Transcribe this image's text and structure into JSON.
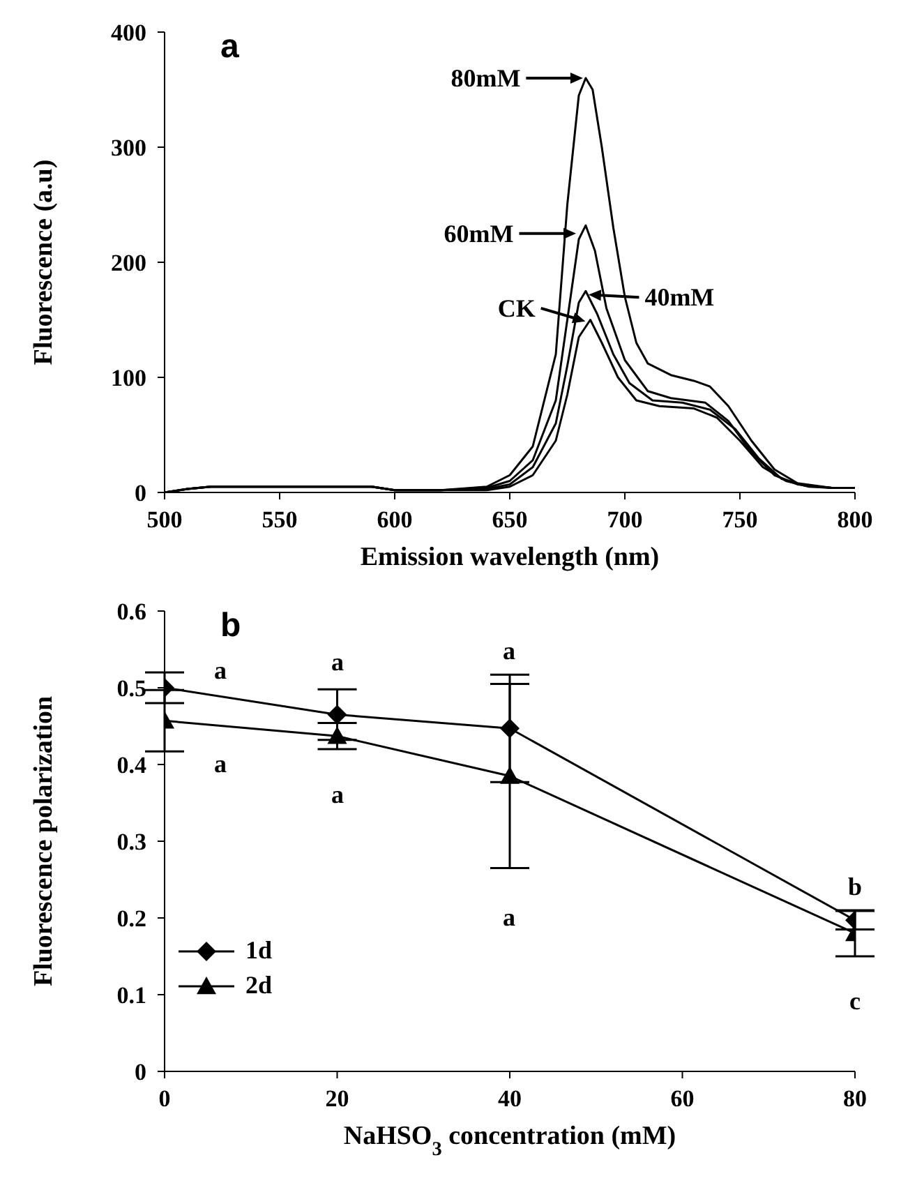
{
  "chart_data": [
    {
      "type": "line",
      "xlabel": "Emission wavelength (nm)",
      "ylabel": "Fluorescence (a.u)",
      "xlim": [
        500,
        800
      ],
      "xticks": [
        500,
        550,
        600,
        650,
        700,
        750,
        800
      ],
      "ylim": [
        0,
        400
      ],
      "yticks": [
        0,
        100,
        200,
        300,
        400
      ],
      "grid": false,
      "legend": false,
      "marker": "none",
      "line_style": "solid",
      "annotations": [
        "a",
        {
          "text": "80mM",
          "x": 683,
          "y": 360
        },
        {
          "text": "60mM",
          "x": 680,
          "y": 225
        },
        {
          "text": "40mM",
          "x": 683,
          "y": 172
        },
        {
          "text": "CK",
          "x": 684,
          "y": 148
        }
      ],
      "series": [
        {
          "color": "#000000",
          "x": [
            500,
            510,
            520,
            590,
            600,
            620,
            640,
            650,
            660,
            670,
            675,
            680,
            683,
            686,
            690,
            695,
            700,
            705,
            710,
            720,
            730,
            737,
            745,
            755,
            765,
            775,
            790,
            800
          ],
          "values": [
            0,
            3,
            5,
            5,
            2,
            2,
            5,
            15,
            40,
            120,
            250,
            345,
            360,
            350,
            300,
            230,
            170,
            130,
            112,
            102,
            97,
            92,
            75,
            45,
            20,
            8,
            4,
            4
          ]
        },
        {
          "color": "#000000",
          "x": [
            500,
            510,
            520,
            590,
            600,
            620,
            640,
            650,
            660,
            670,
            675,
            680,
            683,
            687,
            692,
            700,
            710,
            720,
            735,
            745,
            755,
            765,
            775,
            790,
            800
          ],
          "values": [
            0,
            3,
            5,
            5,
            2,
            2,
            4,
            10,
            28,
            80,
            150,
            220,
            232,
            210,
            160,
            115,
            88,
            82,
            78,
            62,
            35,
            15,
            7,
            4,
            4
          ]
        },
        {
          "color": "#000000",
          "x": [
            500,
            510,
            520,
            590,
            600,
            620,
            640,
            650,
            660,
            670,
            675,
            680,
            683,
            688,
            695,
            702,
            712,
            725,
            737,
            748,
            758,
            768,
            778,
            790,
            800
          ],
          "values": [
            0,
            3,
            5,
            5,
            2,
            2,
            3,
            7,
            22,
            60,
            110,
            165,
            175,
            155,
            120,
            95,
            80,
            78,
            72,
            55,
            30,
            12,
            6,
            4,
            4
          ]
        },
        {
          "color": "#000000",
          "x": [
            500,
            510,
            520,
            590,
            600,
            620,
            640,
            650,
            660,
            670,
            675,
            680,
            685,
            690,
            697,
            705,
            715,
            730,
            740,
            750,
            760,
            770,
            780,
            790,
            800
          ],
          "values": [
            0,
            3,
            5,
            5,
            2,
            2,
            2,
            5,
            15,
            45,
            85,
            135,
            150,
            130,
            100,
            80,
            75,
            73,
            65,
            45,
            22,
            10,
            5,
            4,
            4
          ]
        }
      ]
    },
    {
      "type": "line",
      "xlabel": "NaHSO$_{3}$ concentration (mM)",
      "ylabel": "Fluorescence polarization",
      "xlim": [
        0,
        80
      ],
      "xticks": [
        0,
        20,
        40,
        60,
        80
      ],
      "ylim": [
        0,
        0.6
      ],
      "yticks": [
        0,
        0.1,
        0.2,
        0.3,
        0.4,
        0.5,
        0.6
      ],
      "grid": false,
      "legend": "bottom left",
      "line_style": "solid",
      "annotations": [
        "b",
        "a",
        "a",
        "a",
        "a",
        "a",
        "a",
        "b",
        "c"
      ],
      "x": [
        0,
        20,
        40,
        80
      ],
      "series": [
        {
          "name": "1d",
          "color": "#000000",
          "marker": "diamond",
          "values": [
            0.5,
            0.465,
            0.447,
            0.197
          ],
          "errors": [
            0.02,
            0.033,
            0.07,
            0.012
          ]
        },
        {
          "name": "2d",
          "color": "#000000",
          "marker": "triangle",
          "values": [
            0.457,
            0.437,
            0.385,
            0.18
          ],
          "errors": [
            0.04,
            0.017,
            0.12,
            0.03
          ]
        }
      ]
    }
  ]
}
